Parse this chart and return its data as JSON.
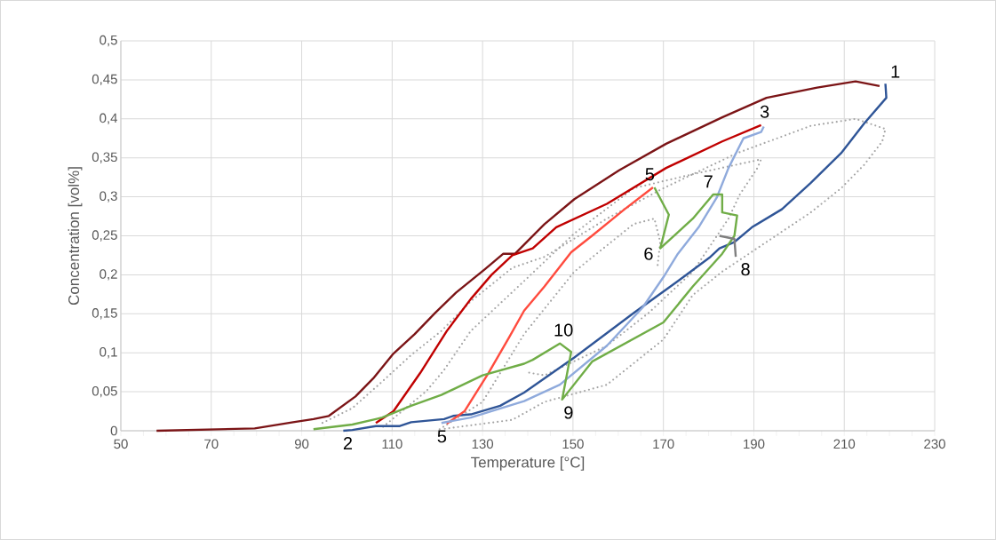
{
  "chart_data": {
    "type": "line",
    "xlabel": "Temperature [°C]",
    "ylabel": "Concentration [vol%]",
    "xlim": [
      50,
      230
    ],
    "xticks": [
      50,
      70,
      90,
      110,
      130,
      150,
      170,
      190,
      210,
      230
    ],
    "ylim": [
      0,
      0.5
    ],
    "yticks": [
      {
        "value": 0,
        "label": "0"
      },
      {
        "value": 0.05,
        "label": "0,05"
      },
      {
        "value": 0.1,
        "label": "0,1"
      },
      {
        "value": 0.15,
        "label": "0,15"
      },
      {
        "value": 0.2,
        "label": "0,2"
      },
      {
        "value": 0.25,
        "label": "0,25"
      },
      {
        "value": 0.3,
        "label": "0,3"
      },
      {
        "value": 0.35,
        "label": "0,35"
      },
      {
        "value": 0.4,
        "label": "0,4"
      },
      {
        "value": 0.45,
        "label": "0,45"
      },
      {
        "value": 0.5,
        "label": "0,5"
      }
    ],
    "grid": true,
    "series": [
      {
        "color": "#a5a5a5",
        "line_style": "dotted",
        "x": [
          94.6,
          101.2,
          107.8,
          114.2,
          120.9,
          127.4,
          136.6,
          143.7,
          157.5,
          170,
          186.3,
          202.6,
          212.5,
          219.1,
          218.4,
          214.4,
          209.3,
          202.6,
          192.8,
          183,
          176.5,
          170,
          157.5,
          143.7,
          136.6,
          120.9
        ],
        "values": [
          0.01,
          0.029,
          0.063,
          0.097,
          0.128,
          0.166,
          0.209,
          0.223,
          0.272,
          0.311,
          0.356,
          0.391,
          0.4,
          0.387,
          0.371,
          0.341,
          0.311,
          0.28,
          0.242,
          0.204,
          0.174,
          0.117,
          0.059,
          0.037,
          0.014,
          0.002
        ]
      },
      {
        "color": "#a5a5a5",
        "line_style": "dotted",
        "x": [
          108,
          117.6,
          121.5,
          127.4,
          139.2,
          150.3,
          163.4,
          176.5,
          191.6,
          190.8,
          186.9,
          184.4,
          176.5,
          166.7,
          157.5,
          143.7,
          139.8
        ],
        "values": [
          0.005,
          0.051,
          0.078,
          0.128,
          0.192,
          0.253,
          0.311,
          0.329,
          0.348,
          0.337,
          0.303,
          0.272,
          0.204,
          0.151,
          0.109,
          0.071,
          0.075
        ]
      },
      {
        "color": "#a5a5a5",
        "line_style": "dotted",
        "x": [
          120.5,
          130,
          139.2,
          150.3,
          163.4,
          168,
          169.3,
          168.7
        ],
        "values": [
          0.002,
          0.037,
          0.124,
          0.204,
          0.265,
          0.272,
          0.242,
          0.211
        ]
      },
      {
        "color": "#7b1416",
        "x": [
          57.9,
          79.6,
          88.1,
          92.6,
          96,
          101.9,
          105.8,
          110.3,
          115,
          119.5,
          124.1,
          130.7,
          134.6,
          137.2,
          143.7,
          150.3,
          160.2,
          170.6,
          183,
          192.8,
          204,
          212.5,
          217.8
        ],
        "values": [
          0,
          0.003,
          0.011,
          0.015,
          0.019,
          0.044,
          0.067,
          0.099,
          0.124,
          0.151,
          0.177,
          0.208,
          0.227,
          0.227,
          0.265,
          0.297,
          0.334,
          0.368,
          0.402,
          0.427,
          0.44,
          0.448,
          0.442
        ]
      },
      {
        "color": "#2f5597",
        "x": [
          99.2,
          101.2,
          106.4,
          111.7,
          114.2,
          121.5,
          123.5,
          127.4,
          133.9,
          139.2,
          150.3,
          163.4,
          173.2,
          180.4,
          182.4,
          185.7,
          189.6,
          196.2,
          202.6,
          209.3,
          214.4,
          219.3,
          219.1
        ],
        "values": [
          0,
          0.001,
          0.006,
          0.006,
          0.011,
          0.015,
          0.019,
          0.021,
          0.032,
          0.049,
          0.094,
          0.151,
          0.192,
          0.223,
          0.234,
          0.242,
          0.261,
          0.284,
          0.318,
          0.356,
          0.394,
          0.427,
          0.445
        ]
      },
      {
        "color": "#c00000",
        "x": [
          106.4,
          110.3,
          116.2,
          122.1,
          127.4,
          132,
          136.6,
          141.1,
          146.3,
          157.5,
          170.6,
          183,
          191.6
        ],
        "values": [
          0.01,
          0.025,
          0.074,
          0.128,
          0.169,
          0.2,
          0.225,
          0.234,
          0.261,
          0.291,
          0.337,
          0.371,
          0.392
        ]
      },
      {
        "color": "#ff4b3e",
        "x": [
          122.1,
          126,
          131.3,
          135.9,
          139.2,
          143.7,
          149.6,
          154.2,
          161.4,
          167.7
        ],
        "values": [
          0.009,
          0.025,
          0.074,
          0.12,
          0.154,
          0.185,
          0.229,
          0.25,
          0.284,
          0.312
        ]
      },
      {
        "color": "#8faadc",
        "x": [
          120.9,
          127.4,
          139.2,
          147.1,
          157.5,
          165.4,
          170,
          173.2,
          177.8,
          181.8,
          184.4,
          187.7,
          191.6,
          192.2
        ],
        "values": [
          0.01,
          0.017,
          0.038,
          0.059,
          0.109,
          0.158,
          0.197,
          0.227,
          0.261,
          0.299,
          0.337,
          0.375,
          0.383,
          0.39
        ]
      },
      {
        "color": "#70ad47",
        "x": [
          92.6,
          101.2,
          106.4,
          107.8,
          114.2,
          120.9,
          130,
          139.2,
          141.1,
          147.1,
          149.6,
          147.6,
          154.3,
          170,
          176.5,
          183,
          185.7,
          186.3,
          183,
          183,
          181,
          176.5,
          169.3,
          171.2,
          168
        ],
        "values": [
          0.002,
          0.008,
          0.015,
          0.017,
          0.032,
          0.046,
          0.071,
          0.086,
          0.091,
          0.112,
          0.101,
          0.04,
          0.089,
          0.139,
          0.185,
          0.227,
          0.25,
          0.276,
          0.28,
          0.303,
          0.303,
          0.272,
          0.234,
          0.277,
          0.312
        ]
      },
      {
        "color": "#7f7f7f",
        "x": [
          182.4,
          185.7,
          186
        ],
        "values": [
          0.25,
          0.246,
          0.223
        ]
      }
    ],
    "annotations": [
      {
        "text": "1",
        "x": 219.1,
        "y": 0.445
      },
      {
        "text": "3",
        "x": 191.6,
        "y": 0.392
      },
      {
        "text": "5",
        "x": 168,
        "y": 0.312
      },
      {
        "text": "7",
        "x": 181,
        "y": 0.303
      },
      {
        "text": "6",
        "x": 169.3,
        "y": 0.234
      },
      {
        "text": "8",
        "x": 186,
        "y": 0.223
      },
      {
        "text": "10",
        "x": 147.1,
        "y": 0.112
      },
      {
        "text": "9",
        "x": 147.6,
        "y": 0.04
      },
      {
        "text": "2",
        "x": 101.2,
        "y": 0.001
      },
      {
        "text": "5",
        "x": 120.9,
        "y": 0.01
      }
    ]
  }
}
